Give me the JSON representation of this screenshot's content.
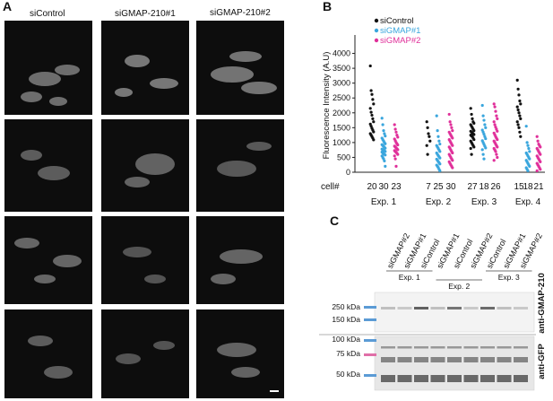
{
  "panel_a": {
    "letter": "A",
    "columns": [
      "siControl",
      "siGMAP-210#1",
      "siGMAP-210#2"
    ],
    "rows": 4
  },
  "panel_b": {
    "letter": "B"
  },
  "panel_c": {
    "letter": "C",
    "lanes": [
      "siGMAP#2",
      "siGMAP#1",
      "siControl",
      "siGMAP#1",
      "siControl",
      "siGMAP#2",
      "siControl",
      "siGMAP#1",
      "siGMAP#2"
    ],
    "experiments": [
      "Exp. 1",
      "Exp. 2",
      "Exp. 3"
    ],
    "upper_markers": [
      "250 kDa",
      "150 kDa"
    ],
    "lower_markers": [
      "100 kDa",
      "75 kDa",
      "50 kDa"
    ],
    "upper_antibody": "anti-GMAP-210",
    "lower_antibody": "anti-GFP",
    "colors": {
      "ladder_blue": "#5b9bd5",
      "ladder_pink": "#e06fa8"
    }
  },
  "chart_data": {
    "type": "scatter",
    "ylabel": "Fluorescence Intensity (A.U)",
    "ylim": [
      0,
      4500
    ],
    "yticks": [
      0,
      500,
      1000,
      1500,
      2000,
      2500,
      3000,
      3500,
      4000
    ],
    "row_label": "cell#",
    "groups": [
      "Exp. 1",
      "Exp. 2",
      "Exp. 3",
      "Exp. 4"
    ],
    "series": [
      {
        "name": "siControl",
        "color": "#111111"
      },
      {
        "name": "siGMAP#1",
        "color": "#3aa6dd"
      },
      {
        "name": "siGMAP#2",
        "color": "#e0309a"
      }
    ],
    "cell_counts": [
      [
        20,
        30,
        23
      ],
      [
        7,
        25,
        30
      ],
      [
        27,
        18,
        26
      ],
      [
        15,
        18,
        21
      ]
    ],
    "columns": [
      {
        "group": 0,
        "series": 0,
        "values": [
          3580,
          2750,
          2620,
          2450,
          2300,
          2150,
          2020,
          1920,
          1800,
          1700,
          1620,
          1550,
          1480,
          1420,
          1360,
          1300,
          1250,
          1200,
          1150,
          1090
        ]
      },
      {
        "group": 0,
        "series": 1,
        "values": [
          1820,
          1600,
          1400,
          1300,
          1220,
          1150,
          1100,
          1050,
          1000,
          960,
          930,
          900,
          870,
          840,
          810,
          780,
          760,
          740,
          720,
          700,
          680,
          650,
          620,
          600,
          580,
          550,
          500,
          450,
          380,
          200
        ]
      },
      {
        "group": 0,
        "series": 2,
        "values": [
          1600,
          1450,
          1350,
          1250,
          1180,
          1120,
          1060,
          1000,
          960,
          920,
          880,
          850,
          820,
          790,
          760,
          730,
          700,
          670,
          640,
          600,
          550,
          450,
          200
        ]
      },
      {
        "group": 1,
        "series": 0,
        "values": [
          1700,
          1500,
          1300,
          1200,
          1050,
          900,
          600
        ]
      },
      {
        "group": 1,
        "series": 1,
        "values": [
          1900,
          1400,
          1200,
          1050,
          950,
          900,
          850,
          800,
          750,
          700,
          650,
          600,
          560,
          520,
          480,
          440,
          400,
          360,
          320,
          280,
          240,
          200,
          160,
          100,
          50
        ]
      },
      {
        "group": 1,
        "series": 2,
        "values": [
          1950,
          1700,
          1600,
          1500,
          1400,
          1350,
          1300,
          1250,
          1200,
          1150,
          1100,
          1050,
          1000,
          950,
          900,
          850,
          800,
          750,
          700,
          650,
          600,
          550,
          500,
          450,
          400,
          350,
          300,
          250,
          200,
          150
        ]
      },
      {
        "group": 2,
        "series": 0,
        "values": [
          2150,
          1950,
          1800,
          1700,
          1650,
          1600,
          1550,
          1500,
          1450,
          1400,
          1380,
          1350,
          1320,
          1300,
          1270,
          1250,
          1220,
          1200,
          1150,
          1100,
          1050,
          1000,
          950,
          900,
          850,
          800,
          600
        ]
      },
      {
        "group": 2,
        "series": 1,
        "values": [
          2250,
          1900,
          1750,
          1600,
          1500,
          1420,
          1350,
          1280,
          1200,
          1130,
          1060,
          1000,
          940,
          880,
          820,
          760,
          600,
          450
        ]
      },
      {
        "group": 2,
        "series": 2,
        "values": [
          2300,
          2200,
          2050,
          1900,
          1800,
          1700,
          1600,
          1520,
          1450,
          1380,
          1320,
          1260,
          1200,
          1150,
          1100,
          1050,
          1000,
          950,
          900,
          850,
          800,
          750,
          700,
          600,
          500,
          400
        ]
      },
      {
        "group": 3,
        "series": 0,
        "values": [
          3100,
          2800,
          2600,
          2400,
          2300,
          2200,
          2100,
          2000,
          1900,
          1800,
          1700,
          1600,
          1500,
          1350,
          1200
        ]
      },
      {
        "group": 3,
        "series": 1,
        "values": [
          1550,
          1000,
          900,
          800,
          700,
          650,
          600,
          550,
          500,
          450,
          400,
          350,
          300,
          250,
          200,
          150,
          100,
          50
        ]
      },
      {
        "group": 3,
        "series": 2,
        "values": [
          1200,
          1050,
          950,
          900,
          850,
          800,
          750,
          700,
          650,
          600,
          550,
          500,
          450,
          400,
          350,
          300,
          250,
          200,
          150,
          100,
          50
        ]
      }
    ]
  }
}
